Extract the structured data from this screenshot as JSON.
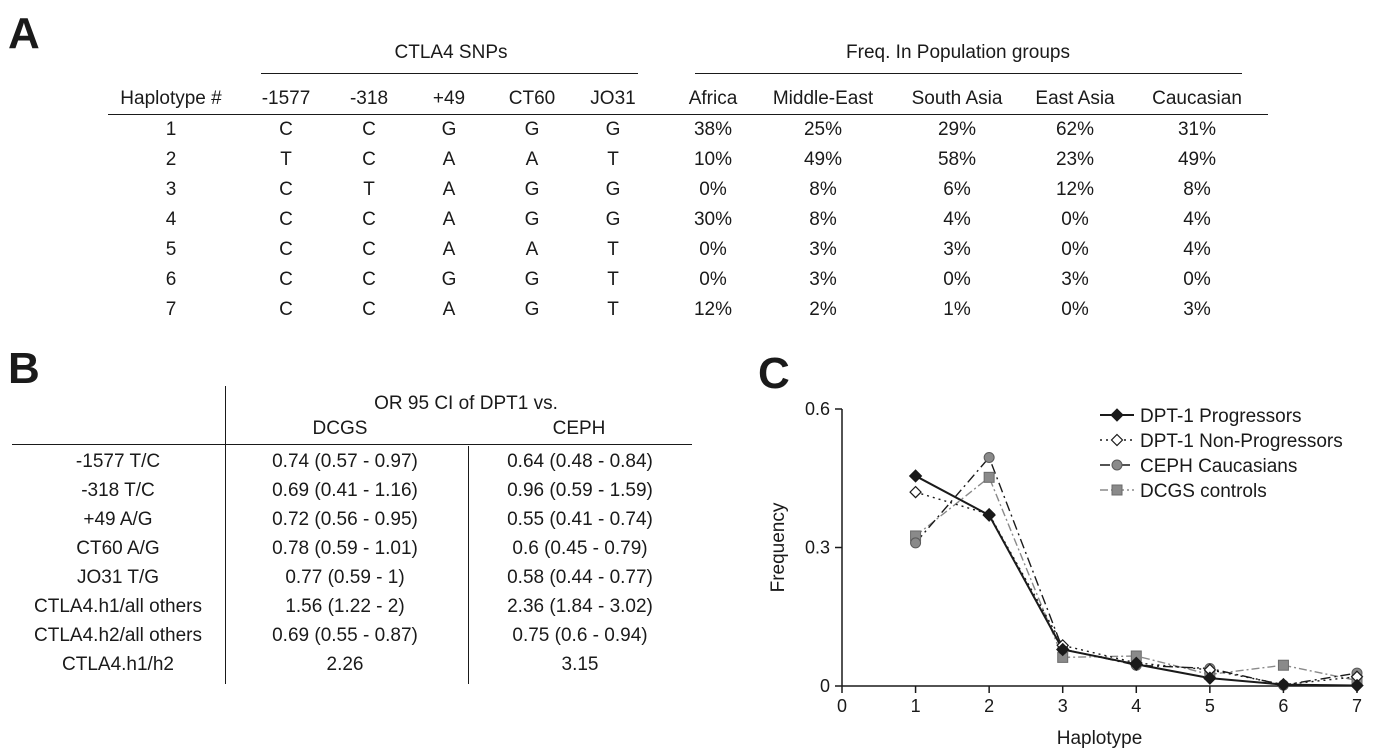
{
  "panel_a": {
    "letter": "A",
    "group_snps": "CTLA4 SNPs",
    "group_freq": "Freq. In Population groups",
    "headers": [
      "Haplotype #",
      "-1577",
      "-318",
      "+49",
      "CT60",
      "JO31",
      "Africa",
      "Middle-East",
      "South Asia",
      "East Asia",
      "Caucasian"
    ],
    "rows": [
      [
        "1",
        "C",
        "C",
        "G",
        "G",
        "G",
        "38%",
        "25%",
        "29%",
        "62%",
        "31%"
      ],
      [
        "2",
        "T",
        "C",
        "A",
        "A",
        "T",
        "10%",
        "49%",
        "58%",
        "23%",
        "49%"
      ],
      [
        "3",
        "C",
        "T",
        "A",
        "G",
        "G",
        "0%",
        "8%",
        "6%",
        "12%",
        "8%"
      ],
      [
        "4",
        "C",
        "C",
        "A",
        "G",
        "G",
        "30%",
        "8%",
        "4%",
        "0%",
        "4%"
      ],
      [
        "5",
        "C",
        "C",
        "A",
        "A",
        "T",
        "0%",
        "3%",
        "3%",
        "0%",
        "4%"
      ],
      [
        "6",
        "C",
        "C",
        "G",
        "G",
        "T",
        "0%",
        "3%",
        "0%",
        "3%",
        "0%"
      ],
      [
        "7",
        "C",
        "C",
        "A",
        "G",
        "T",
        "12%",
        "2%",
        "1%",
        "0%",
        "3%"
      ]
    ]
  },
  "panel_b": {
    "letter": "B",
    "title": "OR 95 CI of DPT1 vs.",
    "col1": "DCGS",
    "col2": "CEPH",
    "rows": [
      [
        "-1577 T/C",
        "0.74  (0.57 - 0.97)",
        "0.64  (0.48 - 0.84)"
      ],
      [
        "-318 T/C",
        "0.69  (0.41 - 1.16)",
        "0.96  (0.59 - 1.59)"
      ],
      [
        "+49 A/G",
        "0.72  (0.56 - 0.95)",
        "0.55  (0.41 - 0.74)"
      ],
      [
        "CT60 A/G",
        "0.78  (0.59 - 1.01)",
        "0.6  (0.45 - 0.79)"
      ],
      [
        "JO31 T/G",
        "0.77  (0.59 - 1)",
        "0.58  (0.44 - 0.77)"
      ],
      [
        "CTLA4.h1/all others",
        "1.56 (1.22 - 2)",
        "2.36 (1.84 - 3.02)"
      ],
      [
        "CTLA4.h2/all others",
        "0.69 (0.55 - 0.87)",
        "0.75 (0.6 - 0.94)"
      ],
      [
        "CTLA4.h1/h2",
        "2.26",
        "3.15"
      ]
    ]
  },
  "panel_c": {
    "letter": "C"
  },
  "chart_data": {
    "type": "line",
    "xlabel": "Haplotype",
    "ylabel": "Frequency",
    "xlim": [
      0,
      7
    ],
    "ylim": [
      0,
      0.6
    ],
    "xticks": [
      "0",
      "1",
      "2",
      "3",
      "4",
      "5",
      "6",
      "7"
    ],
    "yticks": [
      "0",
      "0.3",
      "0.6"
    ],
    "ytick_values": [
      0,
      0.3,
      0.6
    ],
    "grid": false,
    "legend": "top-right",
    "x": [
      1,
      2,
      3,
      4,
      5,
      6,
      7
    ],
    "series": [
      {
        "name": "DPT-1 Progressors",
        "values": [
          0.455,
          0.37,
          0.079,
          0.047,
          0.017,
          0.003,
          0.001
        ],
        "color": "#1a1a1a",
        "marker": "diamond-filled",
        "dash": ""
      },
      {
        "name": "DPT-1 Non-Progressors",
        "values": [
          0.42,
          0.372,
          0.088,
          0.05,
          0.035,
          0.003,
          0.02
        ],
        "color": "#1a1a1a",
        "marker": "diamond-open",
        "dash": "2,4"
      },
      {
        "name": "CEPH Caucasians",
        "values": [
          0.31,
          0.495,
          0.08,
          0.045,
          0.038,
          0.002,
          0.028
        ],
        "color": "#1a1a1a",
        "marker": "circle-gray",
        "dash": "10,4,2,4"
      },
      {
        "name": "DCGS controls",
        "values": [
          0.325,
          0.452,
          0.062,
          0.065,
          0.025,
          0.045,
          0.012
        ],
        "color": "#8a8a8a",
        "marker": "square-gray",
        "dash": "8,3,2,3"
      }
    ]
  }
}
